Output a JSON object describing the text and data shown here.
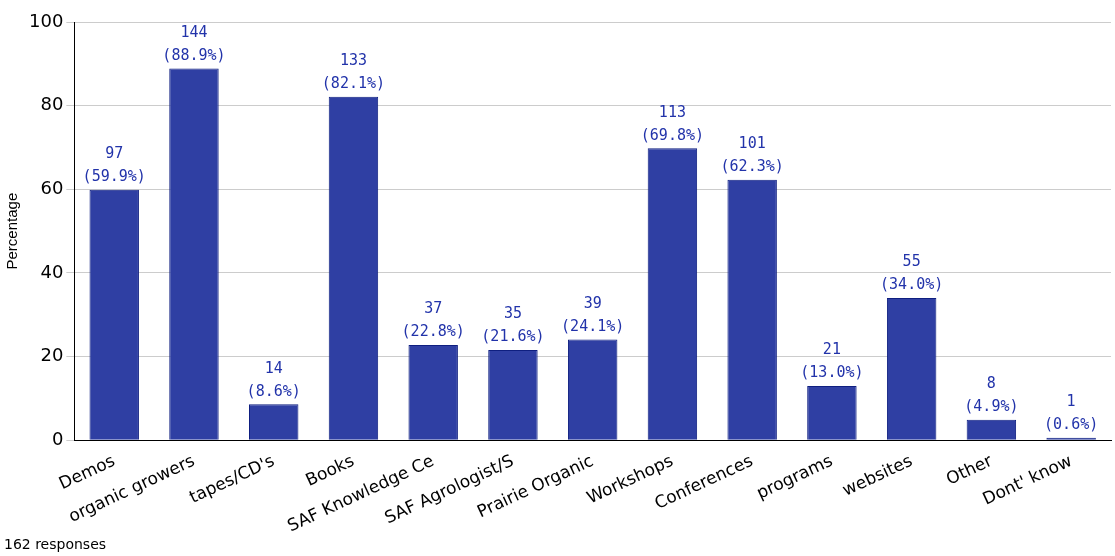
{
  "chart_data": {
    "type": "bar",
    "ylabel": "Percentage",
    "categories": [
      "Demos",
      "organic growers",
      "tapes/CD's",
      "Books",
      "SAF Knowledge Ce",
      "SAF Agrologist/S",
      "Prairie Organic",
      "Workshops",
      "Conferences",
      "programs",
      "websites",
      "Other",
      "Dont' know"
    ],
    "values": [
      59.9,
      88.9,
      8.6,
      82.1,
      22.8,
      21.6,
      24.1,
      69.8,
      62.3,
      13.0,
      34.0,
      4.9,
      0.6
    ],
    "value_labels": [
      "97\n(59.9%)",
      "144\n(88.9%)",
      "14\n(8.6%)",
      "133\n(82.1%)",
      "37\n(22.8%)",
      "35\n(21.6%)",
      "39\n(24.1%)",
      "113\n(69.8%)",
      "101\n(62.3%)",
      "21\n(13.0%)",
      "55\n(34.0%)",
      "8\n(4.9%)",
      "1\n(0.6%)"
    ],
    "color": "#2f3fa3",
    "ylim": [
      0,
      100
    ],
    "yticks": [
      0,
      20,
      40,
      60,
      80,
      100
    ],
    "grid": "y",
    "legend": false,
    "annotations": [
      "162 responses"
    ]
  }
}
